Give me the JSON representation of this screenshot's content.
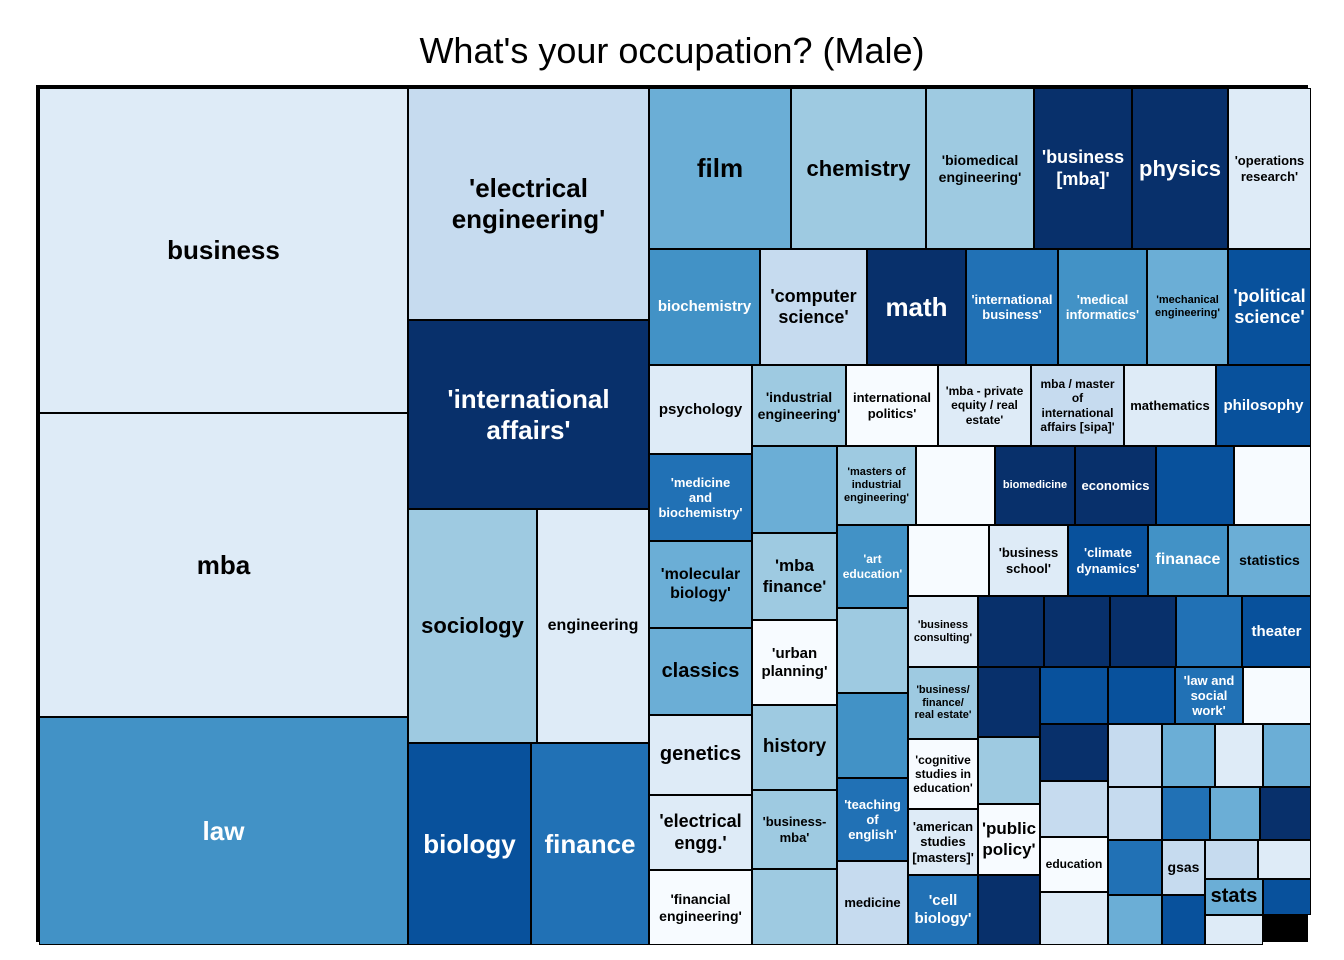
{
  "title": "What's your occupation? (Male)",
  "palette": {
    "c1": "#f7fbff",
    "c2": "#deebf7",
    "c3": "#c6dbef",
    "c4": "#9ecae1",
    "c5": "#6baed6",
    "c6": "#4292c6",
    "c7": "#2171b5",
    "c8": "#08519c",
    "c9": "#08306b"
  },
  "chart_data": {
    "type": "treemap",
    "title": "What's your occupation? (Male)",
    "cells": [
      {
        "label": "business",
        "shade": "c2"
      },
      {
        "label": "mba",
        "shade": "c2"
      },
      {
        "label": "law",
        "shade": "c6"
      },
      {
        "label": "'electrical engineering'",
        "shade": "c3"
      },
      {
        "label": "'international affairs'",
        "shade": "c9"
      },
      {
        "label": "sociology",
        "shade": "c4"
      },
      {
        "label": "engineering",
        "shade": "c2"
      },
      {
        "label": "biology",
        "shade": "c8"
      },
      {
        "label": "finance",
        "shade": "c7"
      },
      {
        "label": "film",
        "shade": "c5"
      },
      {
        "label": "chemistry",
        "shade": "c4"
      },
      {
        "label": "'biomedical engineering'",
        "shade": "c4"
      },
      {
        "label": "'business [mba]'",
        "shade": "c9"
      },
      {
        "label": "physics",
        "shade": "c9"
      },
      {
        "label": "'operations research'",
        "shade": "c2"
      },
      {
        "label": "biochemistry",
        "shade": "c6"
      },
      {
        "label": "'computer science'",
        "shade": "c3"
      },
      {
        "label": "math",
        "shade": "c9"
      },
      {
        "label": "'international business'",
        "shade": "c7"
      },
      {
        "label": "'medical informatics'",
        "shade": "c6"
      },
      {
        "label": "'mechanical engineering'",
        "shade": "c5"
      },
      {
        "label": "'political science'",
        "shade": "c8"
      },
      {
        "label": "psychology",
        "shade": "c2"
      },
      {
        "label": "'industrial engineering'",
        "shade": "c4"
      },
      {
        "label": "international politics'",
        "shade": "c1"
      },
      {
        "label": "'mba - private equity / real estate'",
        "shade": "c2"
      },
      {
        "label": "mba / master of international affairs [sipa]'",
        "shade": "c3"
      },
      {
        "label": "mathematics",
        "shade": "c2"
      },
      {
        "label": "philosophy",
        "shade": "c8"
      },
      {
        "label": "'medicine and biochemistry'",
        "shade": "c7"
      },
      {
        "label": "",
        "shade": "c5"
      },
      {
        "label": "'masters of industrial engineering'",
        "shade": "c4"
      },
      {
        "label": "",
        "shade": "c1"
      },
      {
        "label": "biomedicine",
        "shade": "c9"
      },
      {
        "label": "economics",
        "shade": "c9"
      },
      {
        "label": "",
        "shade": "c8"
      },
      {
        "label": "",
        "shade": "c1"
      },
      {
        "label": "'molecular biology'",
        "shade": "c5"
      },
      {
        "label": "'mba finance'",
        "shade": "c4"
      },
      {
        "label": "'art education'",
        "shade": "c6"
      },
      {
        "label": "",
        "shade": "c1"
      },
      {
        "label": "'business school'",
        "shade": "c2"
      },
      {
        "label": "'climate dynamics'",
        "shade": "c8"
      },
      {
        "label": "finanace",
        "shade": "c6"
      },
      {
        "label": "statistics",
        "shade": "c5"
      },
      {
        "label": "classics",
        "shade": "c5"
      },
      {
        "label": "'urban planning'",
        "shade": "c1"
      },
      {
        "label": "",
        "shade": "c4"
      },
      {
        "label": "'business consulting'",
        "shade": "c2"
      },
      {
        "label": "",
        "shade": "c9"
      },
      {
        "label": "",
        "shade": "c9"
      },
      {
        "label": "",
        "shade": "c9"
      },
      {
        "label": "",
        "shade": "c7"
      },
      {
        "label": "theater",
        "shade": "c8"
      },
      {
        "label": "genetics",
        "shade": "c2"
      },
      {
        "label": "history",
        "shade": "c4"
      },
      {
        "label": "",
        "shade": "c6"
      },
      {
        "label": "'business/ finance/ real estate'",
        "shade": "c4"
      },
      {
        "label": "",
        "shade": "c9"
      },
      {
        "label": "",
        "shade": "c8"
      },
      {
        "label": "",
        "shade": "c8"
      },
      {
        "label": "'law and social work'",
        "shade": "c7"
      },
      {
        "label": "",
        "shade": "c1"
      },
      {
        "label": "'cognitive studies in education'",
        "shade": "c1"
      },
      {
        "label": "",
        "shade": "c4"
      },
      {
        "label": "",
        "shade": "c9"
      },
      {
        "label": "",
        "shade": "c3"
      },
      {
        "label": "",
        "shade": "c5"
      },
      {
        "label": "",
        "shade": "c2"
      },
      {
        "label": "",
        "shade": "c5"
      },
      {
        "label": "'electrical engg.'",
        "shade": "c2"
      },
      {
        "label": "'business-mba'",
        "shade": "c4"
      },
      {
        "label": "'teaching of english'",
        "shade": "c7"
      },
      {
        "label": "'american studies [masters]'",
        "shade": "c2"
      },
      {
        "label": "'public policy'",
        "shade": "c1"
      },
      {
        "label": "",
        "shade": "c3"
      },
      {
        "label": "",
        "shade": "c3"
      },
      {
        "label": "",
        "shade": "c7"
      },
      {
        "label": "",
        "shade": "c5"
      },
      {
        "label": "",
        "shade": "c9"
      },
      {
        "label": "'financial engineering'",
        "shade": "c1"
      },
      {
        "label": "",
        "shade": "c4"
      },
      {
        "label": "medicine",
        "shade": "c3"
      },
      {
        "label": "'cell biology'",
        "shade": "c7"
      },
      {
        "label": "",
        "shade": "c9"
      },
      {
        "label": "education",
        "shade": "c1"
      },
      {
        "label": "",
        "shade": "c7"
      },
      {
        "label": "gsas",
        "shade": "c3"
      },
      {
        "label": "",
        "shade": "c3"
      },
      {
        "label": "",
        "shade": "c2"
      },
      {
        "label": "",
        "shade": "c2"
      },
      {
        "label": "",
        "shade": "c5"
      },
      {
        "label": "",
        "shade": "c8"
      },
      {
        "label": "stats",
        "shade": "c5"
      },
      {
        "label": "",
        "shade": "c8"
      },
      {
        "label": "",
        "shade": "c2"
      }
    ]
  }
}
